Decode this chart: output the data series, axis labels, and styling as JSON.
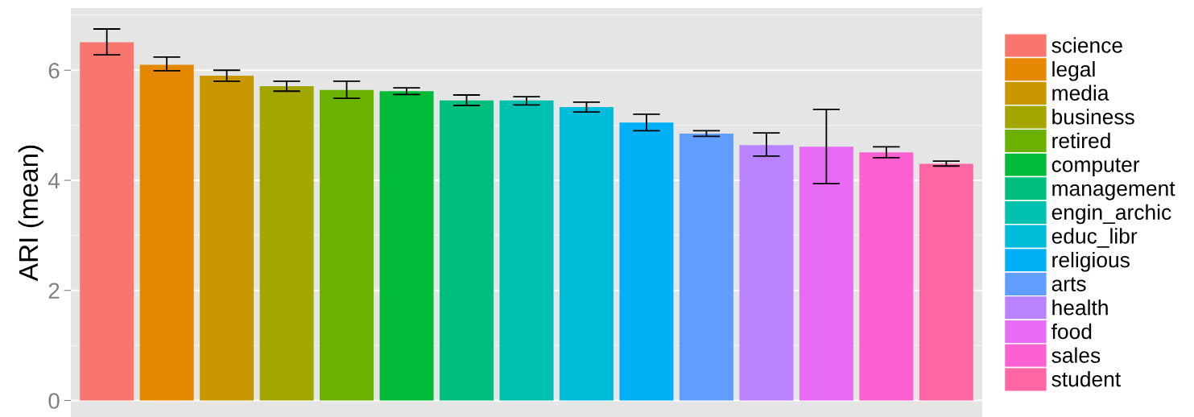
{
  "chart_data": {
    "type": "bar",
    "ylabel": "ARI (mean)",
    "stacked": true,
    "categories": [
      null,
      null,
      null,
      null,
      null,
      null,
      null,
      null,
      null,
      null,
      null,
      null,
      null,
      null,
      null
    ],
    "series": [
      {
        "name": "science",
        "color": "#F8766D",
        "values": [
          6.51,
          null,
          null,
          null,
          null,
          null,
          null,
          null,
          null,
          null,
          null,
          null,
          null,
          null,
          null
        ],
        "errors": [
          [
            6.28,
            6.75
          ],
          null,
          null,
          null,
          null,
          null,
          null,
          null,
          null,
          null,
          null,
          null,
          null,
          null,
          null
        ]
      },
      {
        "name": "legal",
        "color": "#E58700",
        "values": [
          null,
          6.1,
          null,
          null,
          null,
          null,
          null,
          null,
          null,
          null,
          null,
          null,
          null,
          null,
          null
        ],
        "errors": [
          null,
          [
            5.99,
            6.24
          ],
          null,
          null,
          null,
          null,
          null,
          null,
          null,
          null,
          null,
          null,
          null,
          null,
          null
        ]
      },
      {
        "name": "media",
        "color": "#C99800",
        "values": [
          null,
          null,
          5.9,
          null,
          null,
          null,
          null,
          null,
          null,
          null,
          null,
          null,
          null,
          null,
          null
        ],
        "errors": [
          null,
          null,
          [
            5.8,
            6.0
          ],
          null,
          null,
          null,
          null,
          null,
          null,
          null,
          null,
          null,
          null,
          null,
          null
        ]
      },
      {
        "name": "business",
        "color": "#A3A500",
        "values": [
          null,
          null,
          null,
          5.71,
          null,
          null,
          null,
          null,
          null,
          null,
          null,
          null,
          null,
          null,
          null
        ],
        "errors": [
          null,
          null,
          null,
          [
            5.62,
            5.8
          ],
          null,
          null,
          null,
          null,
          null,
          null,
          null,
          null,
          null,
          null,
          null
        ]
      },
      {
        "name": "retired",
        "color": "#6BB100",
        "values": [
          null,
          null,
          null,
          null,
          5.64,
          null,
          null,
          null,
          null,
          null,
          null,
          null,
          null,
          null,
          null
        ],
        "errors": [
          null,
          null,
          null,
          null,
          [
            5.49,
            5.8
          ],
          null,
          null,
          null,
          null,
          null,
          null,
          null,
          null,
          null,
          null
        ]
      },
      {
        "name": "computer",
        "color": "#00BA38",
        "values": [
          null,
          null,
          null,
          null,
          null,
          5.62,
          null,
          null,
          null,
          null,
          null,
          null,
          null,
          null,
          null
        ],
        "errors": [
          null,
          null,
          null,
          null,
          null,
          [
            5.56,
            5.68
          ],
          null,
          null,
          null,
          null,
          null,
          null,
          null,
          null,
          null
        ]
      },
      {
        "name": "management",
        "color": "#00BF7D",
        "values": [
          null,
          null,
          null,
          null,
          null,
          null,
          5.45,
          null,
          null,
          null,
          null,
          null,
          null,
          null,
          null
        ],
        "errors": [
          null,
          null,
          null,
          null,
          null,
          null,
          [
            5.36,
            5.55
          ],
          null,
          null,
          null,
          null,
          null,
          null,
          null,
          null
        ]
      },
      {
        "name": "engin_archic",
        "color": "#00C0AF",
        "values": [
          null,
          null,
          null,
          null,
          null,
          null,
          null,
          5.45,
          null,
          null,
          null,
          null,
          null,
          null,
          null
        ],
        "errors": [
          null,
          null,
          null,
          null,
          null,
          null,
          null,
          [
            5.37,
            5.52
          ],
          null,
          null,
          null,
          null,
          null,
          null,
          null
        ]
      },
      {
        "name": "educ_libr",
        "color": "#00BCD8",
        "values": [
          null,
          null,
          null,
          null,
          null,
          null,
          null,
          null,
          5.33,
          null,
          null,
          null,
          null,
          null,
          null
        ],
        "errors": [
          null,
          null,
          null,
          null,
          null,
          null,
          null,
          null,
          [
            5.24,
            5.42
          ],
          null,
          null,
          null,
          null,
          null,
          null
        ]
      },
      {
        "name": "religious",
        "color": "#00B0F6",
        "values": [
          null,
          null,
          null,
          null,
          null,
          null,
          null,
          null,
          null,
          5.05,
          null,
          null,
          null,
          null,
          null
        ],
        "errors": [
          null,
          null,
          null,
          null,
          null,
          null,
          null,
          null,
          null,
          [
            4.9,
            5.2
          ],
          null,
          null,
          null,
          null,
          null
        ]
      },
      {
        "name": "arts",
        "color": "#619CFF",
        "values": [
          null,
          null,
          null,
          null,
          null,
          null,
          null,
          null,
          null,
          null,
          4.85,
          null,
          null,
          null,
          null
        ],
        "errors": [
          null,
          null,
          null,
          null,
          null,
          null,
          null,
          null,
          null,
          null,
          [
            4.8,
            4.9
          ],
          null,
          null,
          null,
          null
        ]
      },
      {
        "name": "health",
        "color": "#B983FF",
        "values": [
          null,
          null,
          null,
          null,
          null,
          null,
          null,
          null,
          null,
          null,
          null,
          4.64,
          null,
          null,
          null
        ],
        "errors": [
          null,
          null,
          null,
          null,
          null,
          null,
          null,
          null,
          null,
          null,
          null,
          [
            4.44,
            4.86
          ],
          null,
          null,
          null
        ]
      },
      {
        "name": "food",
        "color": "#E76BF3",
        "values": [
          null,
          null,
          null,
          null,
          null,
          null,
          null,
          null,
          null,
          null,
          null,
          null,
          4.61,
          null,
          null
        ],
        "errors": [
          null,
          null,
          null,
          null,
          null,
          null,
          null,
          null,
          null,
          null,
          null,
          null,
          [
            3.94,
            5.29
          ],
          null,
          null
        ]
      },
      {
        "name": "sales",
        "color": "#FD61D1",
        "values": [
          null,
          null,
          null,
          null,
          null,
          null,
          null,
          null,
          null,
          null,
          null,
          null,
          null,
          4.51,
          null
        ],
        "errors": [
          null,
          null,
          null,
          null,
          null,
          null,
          null,
          null,
          null,
          null,
          null,
          null,
          null,
          [
            4.41,
            4.61
          ],
          null
        ]
      },
      {
        "name": "student",
        "color": "#FF67A4",
        "values": [
          null,
          null,
          null,
          null,
          null,
          null,
          null,
          null,
          null,
          null,
          null,
          null,
          null,
          null,
          4.3
        ],
        "errors": [
          null,
          null,
          null,
          null,
          null,
          null,
          null,
          null,
          null,
          null,
          null,
          null,
          null,
          null,
          [
            4.26,
            4.35
          ]
        ]
      }
    ],
    "ylim": [
      -0.3,
      7.13
    ],
    "yticks": [
      0,
      2,
      4,
      6
    ],
    "grid": true,
    "legend": "right",
    "tick_labels": "y"
  }
}
